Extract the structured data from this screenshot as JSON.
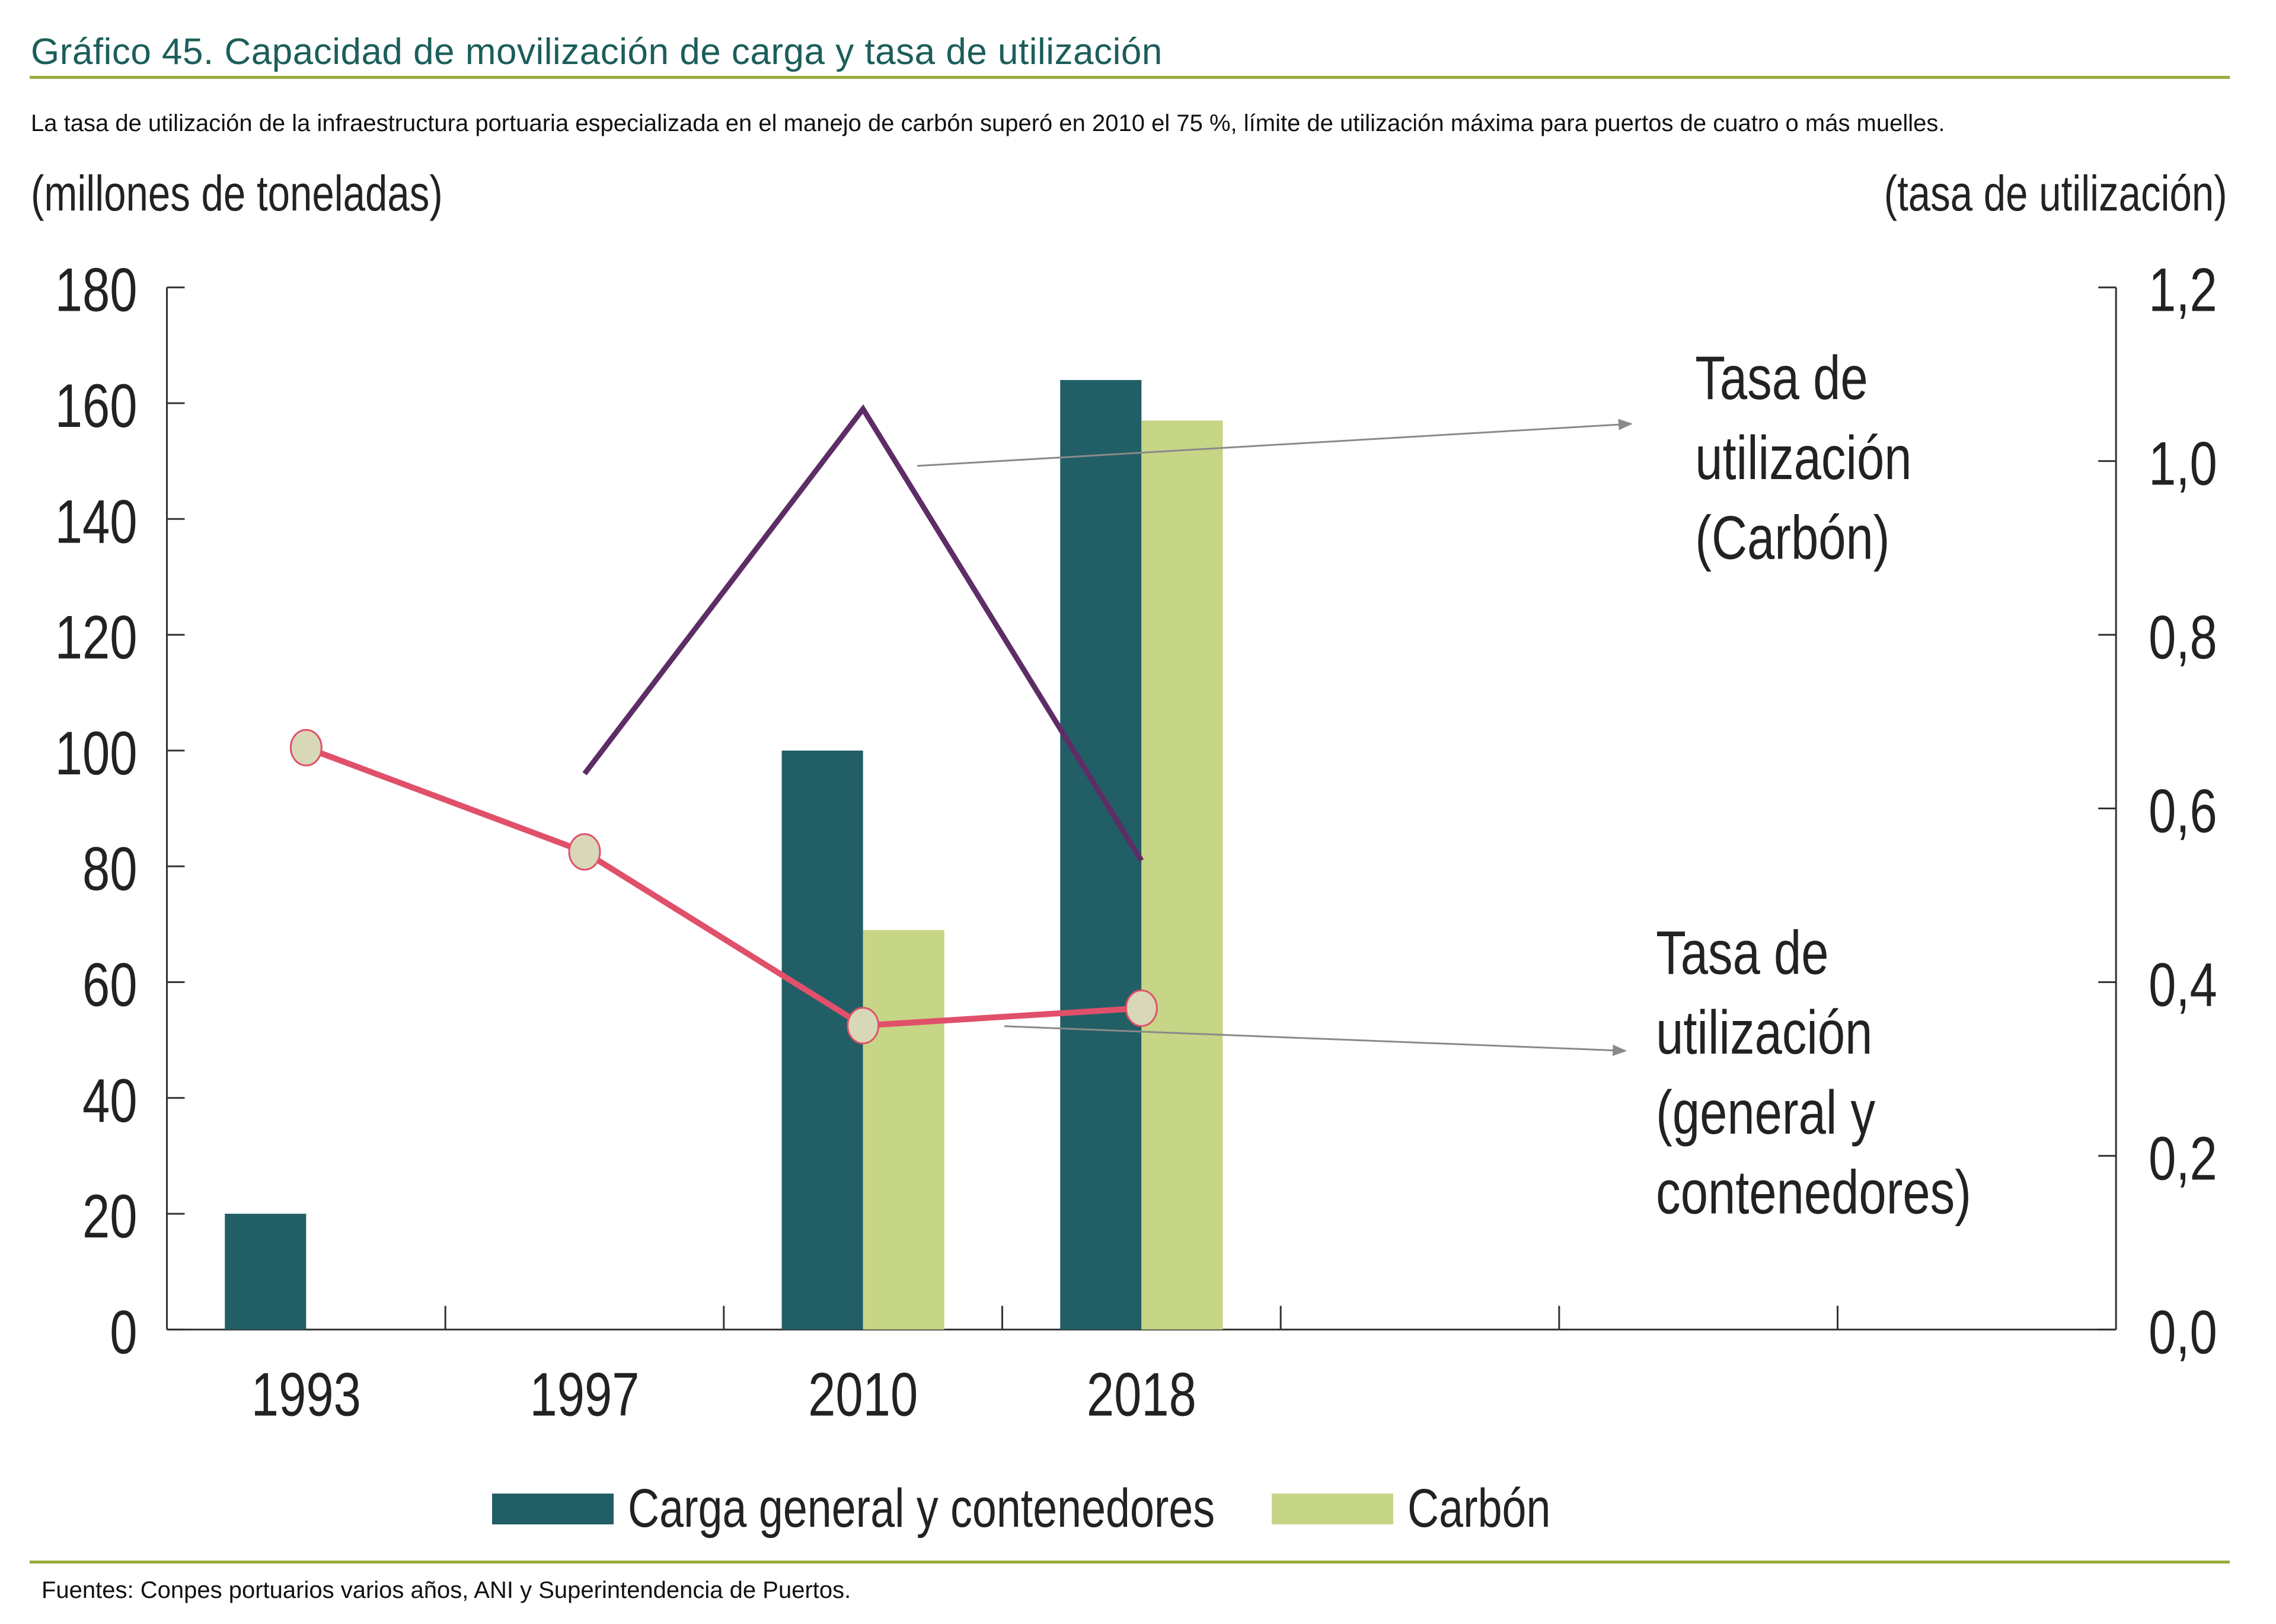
{
  "header": {
    "title": "Gráfico 45. Capacidad de movilización de carga y tasa de utilización",
    "subtitle": "La tasa de utilización de la infraestructura portuaria especializada en el manejo de carbón superó en 2010 el 75 %, límite de utilización máxima para puertos de cuatro o más muelles."
  },
  "footer": {
    "source": "Fuentes: Conpes portuarios varios años, ANI y Superintendencia de Puertos."
  },
  "colors": {
    "title": "#1b5e5a",
    "rule": "#9aaa3c",
    "carga": "#225e66",
    "carbon": "#c6d586",
    "line_general": "#e0506a",
    "line_carbon": "#5e2c66",
    "marker_fill": "#d8d8b8",
    "annotation_arrow": "#8a8a8a"
  },
  "chart_data": {
    "type": "bar",
    "title": "Gráfico 45. Capacidad de movilización de carga y tasa de utilización",
    "ylabel": "(millones de toneladas)",
    "y2label": "(tasa de utilización)",
    "categories": [
      "1993",
      "1997",
      "2010",
      "2018"
    ],
    "extra_empty_categories": 3,
    "ylim": [
      0,
      180
    ],
    "yticks": [
      "0",
      "20",
      "40",
      "60",
      "80",
      "100",
      "120",
      "140",
      "160",
      "180"
    ],
    "y2lim": [
      0,
      1.2
    ],
    "y2ticks": [
      "0,0",
      "0,2",
      "0,4",
      "0,6",
      "0,8",
      "1,0",
      "1,2"
    ],
    "grid": false,
    "legend_position": "bottom",
    "series": [
      {
        "name": "Carga general y contenedores",
        "type": "bar",
        "axis": "left",
        "values": [
          20,
          null,
          100,
          164
        ]
      },
      {
        "name": "Carbón",
        "type": "bar",
        "axis": "left",
        "values": [
          null,
          null,
          69,
          157
        ]
      },
      {
        "name": "Tasa de utilización (general y contenedores)",
        "type": "line",
        "axis": "right",
        "markers": true,
        "values": [
          0.67,
          0.55,
          0.35,
          0.37
        ]
      },
      {
        "name": "Tasa de utilización (Carbón)",
        "type": "line",
        "axis": "right",
        "markers": false,
        "values": [
          null,
          0.64,
          1.06,
          0.54
        ]
      }
    ],
    "annotations": [
      {
        "lines": [
          "Tasa de",
          "utilización",
          "(Carbón)"
        ],
        "target_series": "Tasa de utilización (Carbón)"
      },
      {
        "lines": [
          "Tasa de",
          "utilización",
          "(general y",
          "contenedores)"
        ],
        "target_series": "Tasa de utilización (general y contenedores)"
      }
    ],
    "legend": [
      "Carga general y contenedores",
      "Carbón"
    ]
  }
}
